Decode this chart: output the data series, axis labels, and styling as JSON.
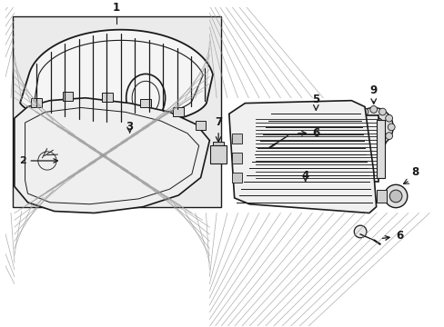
{
  "background_color": "#ffffff",
  "fig_width": 4.89,
  "fig_height": 3.6,
  "dpi": 100,
  "line_color": "#1a1a1a",
  "fill_light": "#f0f0f0",
  "fill_mid": "#e0e0e0",
  "fill_gray": "#d0d0d0",
  "hatch_color": "#888888"
}
